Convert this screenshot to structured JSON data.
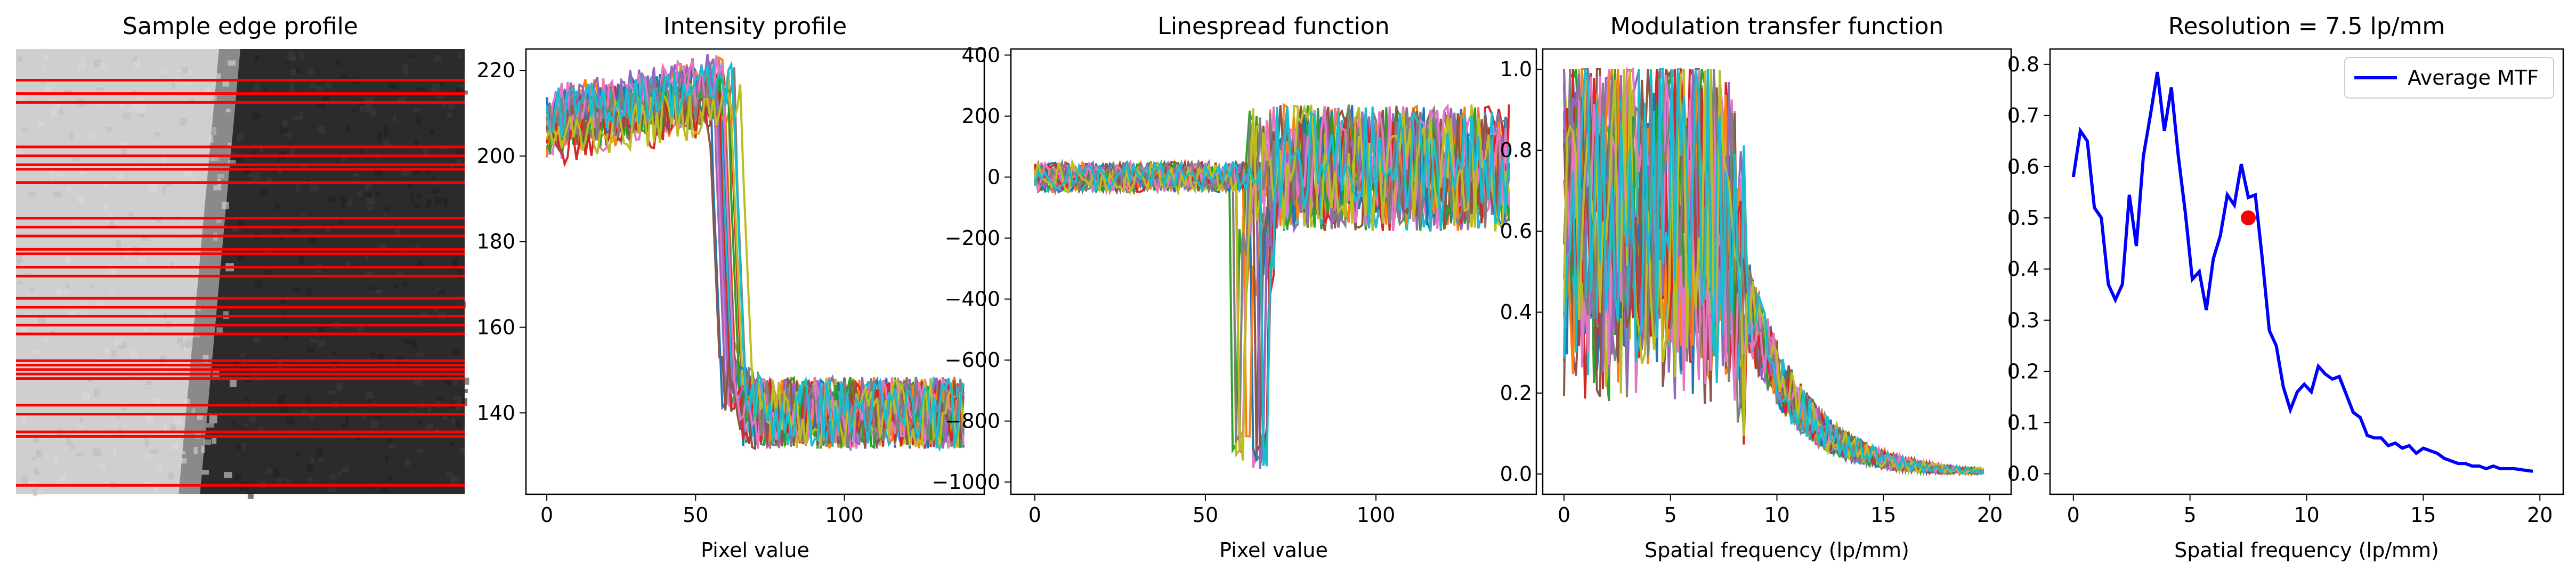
{
  "chart_data": [
    {
      "type": "image",
      "title": "Sample edge profile",
      "edge_column_fraction": 0.45,
      "light_gray": "#cfcfcf",
      "dark_gray": "#2b2b2b",
      "line_color": "#ff0000",
      "line_count": 30
    },
    {
      "type": "line",
      "title": "Intensity profile",
      "xlabel": "Pixel value",
      "ylabel": "",
      "xlim": [
        -7,
        147
      ],
      "ylim": [
        121,
        225
      ],
      "xticks": [
        0,
        50,
        100
      ],
      "yticks": [
        140,
        160,
        180,
        200,
        220
      ],
      "x_range": [
        0,
        140
      ],
      "series_count": 20,
      "profile": {
        "high": 208,
        "low": 140,
        "edge_at": 62,
        "noise_high": 6,
        "noise_low": 7
      }
    },
    {
      "type": "line",
      "title": "Linespread function",
      "xlabel": "Pixel value",
      "ylabel": "",
      "xlim": [
        -7,
        147
      ],
      "ylim": [
        -1040,
        420
      ],
      "xticks": [
        0,
        50,
        100
      ],
      "yticks": [
        -1000,
        -800,
        -600,
        -400,
        -200,
        0,
        200,
        400
      ],
      "x_range": [
        0,
        139
      ],
      "series_count": 20,
      "profile": {
        "baseline": 0,
        "min_at_edge": -960,
        "noise_before": 45,
        "noise_after": 160
      }
    },
    {
      "type": "line",
      "title": "Modulation transfer function",
      "xlabel": "Spatial frequency (lp/mm)",
      "ylabel": "",
      "xlim": [
        -1,
        21
      ],
      "ylim": [
        -0.05,
        1.05
      ],
      "xticks": [
        0,
        5,
        10,
        15,
        20
      ],
      "yticks": [
        0.0,
        0.2,
        0.4,
        0.6,
        0.8,
        1.0
      ],
      "x_range": [
        0,
        19.7
      ],
      "series_count": 20
    },
    {
      "type": "line",
      "title": "Resolution = 7.5 lp/mm",
      "xlabel": "Spatial frequency (lp/mm)",
      "ylabel": "",
      "xlim": [
        -1,
        21
      ],
      "ylim": [
        -0.04,
        0.83
      ],
      "xticks": [
        0,
        5,
        10,
        15,
        20
      ],
      "yticks": [
        0.0,
        0.1,
        0.2,
        0.3,
        0.4,
        0.5,
        0.6,
        0.7,
        0.8
      ],
      "legend": "top-right",
      "series": [
        {
          "name": "Average MTF",
          "color": "#0000ff",
          "x": [
            0.0,
            0.3,
            0.6,
            0.9,
            1.2,
            1.5,
            1.8,
            2.1,
            2.4,
            2.7,
            3.0,
            3.3,
            3.6,
            3.9,
            4.2,
            4.5,
            4.8,
            5.1,
            5.4,
            5.7,
            6.0,
            6.3,
            6.6,
            6.9,
            7.2,
            7.5,
            7.8,
            8.1,
            8.4,
            8.7,
            9.0,
            9.3,
            9.6,
            9.9,
            10.2,
            10.5,
            10.8,
            11.1,
            11.4,
            11.7,
            12.0,
            12.3,
            12.6,
            12.9,
            13.2,
            13.5,
            13.8,
            14.1,
            14.4,
            14.7,
            15.0,
            15.3,
            15.6,
            15.9,
            16.2,
            16.5,
            16.8,
            17.1,
            17.4,
            17.7,
            18.0,
            18.3,
            18.6,
            18.9,
            19.2,
            19.5,
            19.7
          ],
          "y": [
            0.58,
            0.67,
            0.65,
            0.52,
            0.5,
            0.37,
            0.34,
            0.37,
            0.545,
            0.445,
            0.62,
            0.7,
            0.785,
            0.67,
            0.755,
            0.62,
            0.51,
            0.38,
            0.395,
            0.32,
            0.42,
            0.465,
            0.545,
            0.525,
            0.605,
            0.54,
            0.545,
            0.42,
            0.28,
            0.25,
            0.17,
            0.125,
            0.16,
            0.175,
            0.16,
            0.21,
            0.195,
            0.185,
            0.19,
            0.155,
            0.12,
            0.11,
            0.075,
            0.07,
            0.07,
            0.055,
            0.06,
            0.05,
            0.055,
            0.04,
            0.05,
            0.045,
            0.04,
            0.03,
            0.025,
            0.02,
            0.02,
            0.015,
            0.015,
            0.01,
            0.015,
            0.01,
            0.01,
            0.01,
            0.008,
            0.006,
            0.005
          ]
        }
      ],
      "marker": {
        "x": 7.5,
        "y": 0.5,
        "color": "#ff0000"
      }
    }
  ]
}
